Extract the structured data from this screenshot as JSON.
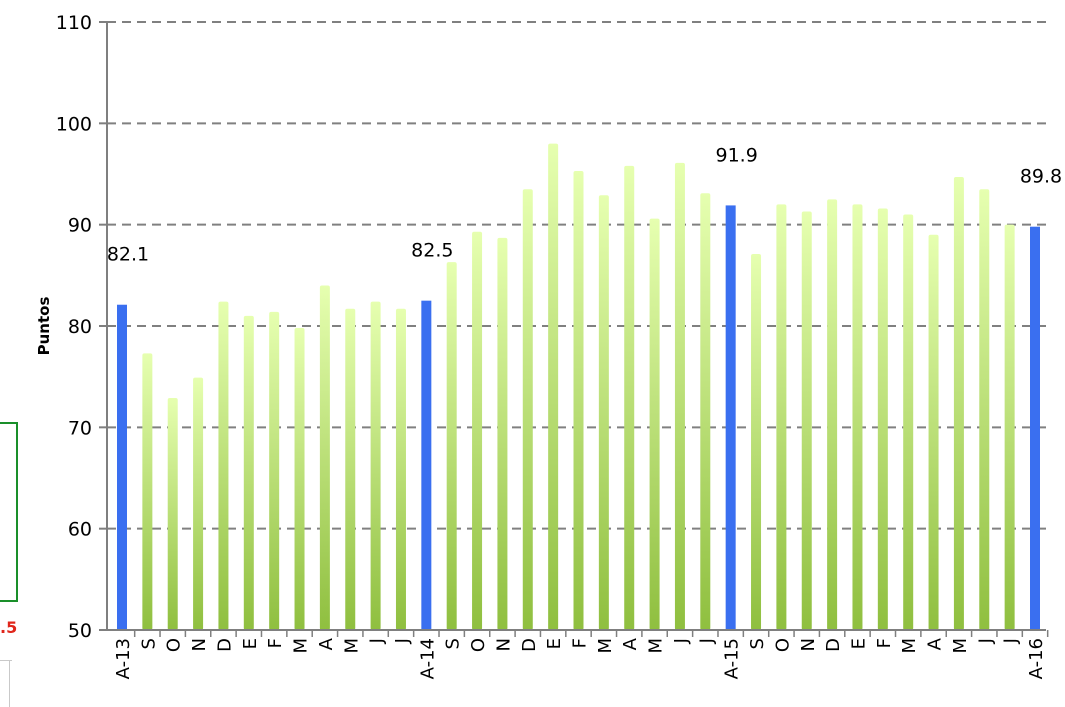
{
  "chart_data": {
    "type": "bar",
    "ylabel": "Puntos",
    "ylim": [
      50,
      110
    ],
    "yticks": [
      50,
      60,
      70,
      80,
      90,
      100,
      110
    ],
    "grid": "horizontal-dashed",
    "categories": [
      "A-13",
      "S",
      "O",
      "N",
      "D",
      "E",
      "F",
      "M",
      "A",
      "M",
      "J",
      "J",
      "A-14",
      "S",
      "O",
      "N",
      "D",
      "E",
      "F",
      "M",
      "A",
      "M",
      "J",
      "J",
      "A-15",
      "S",
      "O",
      "N",
      "D",
      "E",
      "F",
      "M",
      "A",
      "M",
      "J",
      "J",
      "A-16"
    ],
    "values": [
      82.1,
      77.3,
      72.9,
      74.9,
      82.4,
      81.0,
      81.4,
      79.8,
      84.0,
      81.7,
      82.4,
      81.7,
      82.5,
      86.3,
      89.3,
      88.7,
      93.5,
      98.0,
      95.3,
      92.9,
      95.8,
      90.6,
      96.1,
      93.1,
      91.9,
      87.1,
      92.0,
      91.3,
      92.5,
      92.0,
      91.6,
      91.0,
      89.0,
      94.7,
      93.5,
      90.0,
      89.8
    ],
    "highlight_indices": [
      0,
      12,
      24,
      36
    ],
    "data_labels": [
      {
        "index": 0,
        "text": "82.1"
      },
      {
        "index": 12,
        "text": "82.5"
      },
      {
        "index": 24,
        "text": "91.9"
      },
      {
        "index": 36,
        "text": "89.8"
      }
    ],
    "colors": {
      "highlight": "#3a6ff0",
      "bar_top": "#e6ffb0",
      "bar_bottom": "#8fbf3f",
      "grid": "#808080",
      "axis": "#7f7f7f"
    }
  },
  "fragment": {
    "value_text": ".5",
    "value_color": "#e0261b",
    "box_border_color": "#1a8f2a"
  }
}
